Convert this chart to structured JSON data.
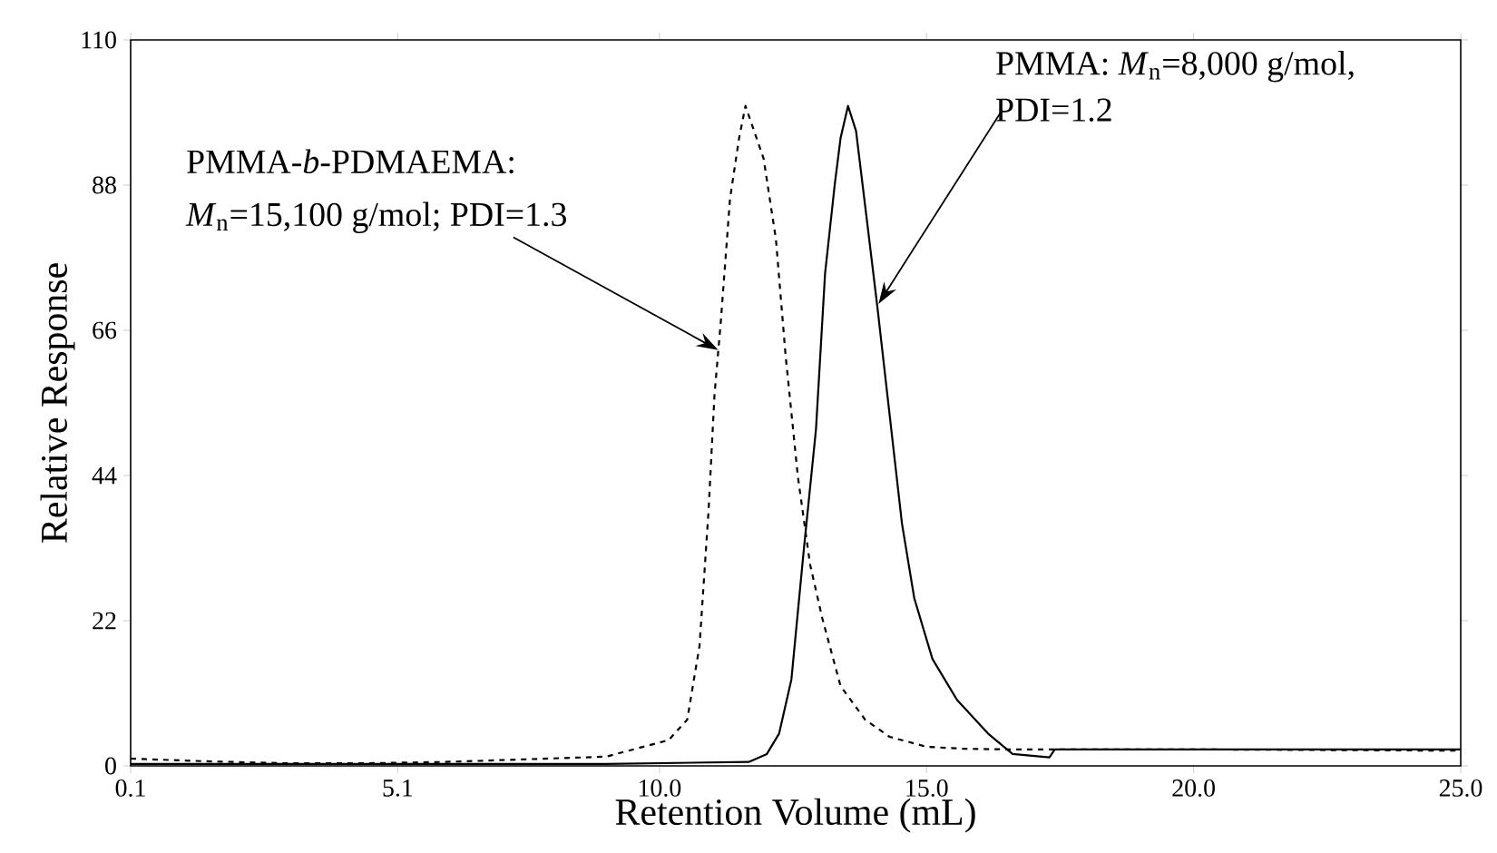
{
  "chart_data": {
    "type": "line",
    "xlabel": "Retention Volume (mL)",
    "ylabel": "Relative Response",
    "xlim": [
      0.1,
      25
    ],
    "ylim": [
      0,
      110
    ],
    "xticks": [
      0.1,
      5.1,
      {
        "value": 10,
        "label": "10.0"
      },
      {
        "value": 15,
        "label": "15.0"
      },
      {
        "value": 20,
        "label": "20.0"
      },
      {
        "value": 25,
        "label": "25.0"
      }
    ],
    "yticks": [
      0,
      22,
      44,
      66,
      88,
      110
    ],
    "series": [
      {
        "color": "#000000",
        "line_style": "dashed",
        "x": [
          0.1,
          1.5,
          3,
          4.5,
          6,
          7.5,
          9,
          9.7,
          10.17,
          10.52,
          10.75,
          10.92,
          11.03,
          11.15,
          11.32,
          11.49,
          11.61,
          11.95,
          12.18,
          12.36,
          12.59,
          12.82,
          13.05,
          13.39,
          13.85,
          14.31,
          15,
          15.69,
          16.49,
          17.3,
          20,
          25
        ],
        "values": [
          1.1,
          0.7,
          0.4,
          0.4,
          0.6,
          1,
          1.4,
          2.9,
          3.9,
          7,
          18.2,
          38.8,
          56.2,
          67.5,
          85.9,
          95.1,
          100,
          92,
          79.8,
          62.3,
          43.9,
          30.5,
          22.3,
          12.1,
          7,
          4.4,
          2.9,
          2.6,
          2.5,
          2.5,
          2.5,
          2.3
        ]
      },
      {
        "color": "#000000",
        "line_style": "solid",
        "x": [
          0.1,
          3,
          6,
          9,
          11.67,
          12.01,
          12.24,
          12.47,
          12.7,
          12.93,
          13.1,
          13.28,
          13.39,
          13.53,
          13.68,
          13.85,
          14.08,
          14.31,
          14.54,
          14.77,
          15.11,
          15.57,
          16.15,
          16.61,
          17.3,
          17.4,
          20,
          25
        ],
        "values": [
          0.3,
          0.3,
          0.3,
          0.3,
          0.6,
          1.8,
          4.9,
          13.1,
          32.6,
          51,
          74.6,
          88,
          95.1,
          100,
          96.2,
          84.9,
          69.5,
          53.1,
          36.7,
          25.4,
          16.2,
          10,
          4.9,
          1.8,
          1.3,
          2.5,
          2.5,
          2.5
        ]
      }
    ],
    "annotations": [
      "PMMA-*b*-PDMAEMA:",
      {
        "text": "*M*$_{n}$=15,100 g/mol; PDI=1.3",
        "x": 11.1,
        "y": 63
      },
      "PMMA: *M*$_{n}$=8,000 g/mol,",
      {
        "text": "PDI=1.2",
        "x": 14.1,
        "y": 70
      }
    ]
  }
}
